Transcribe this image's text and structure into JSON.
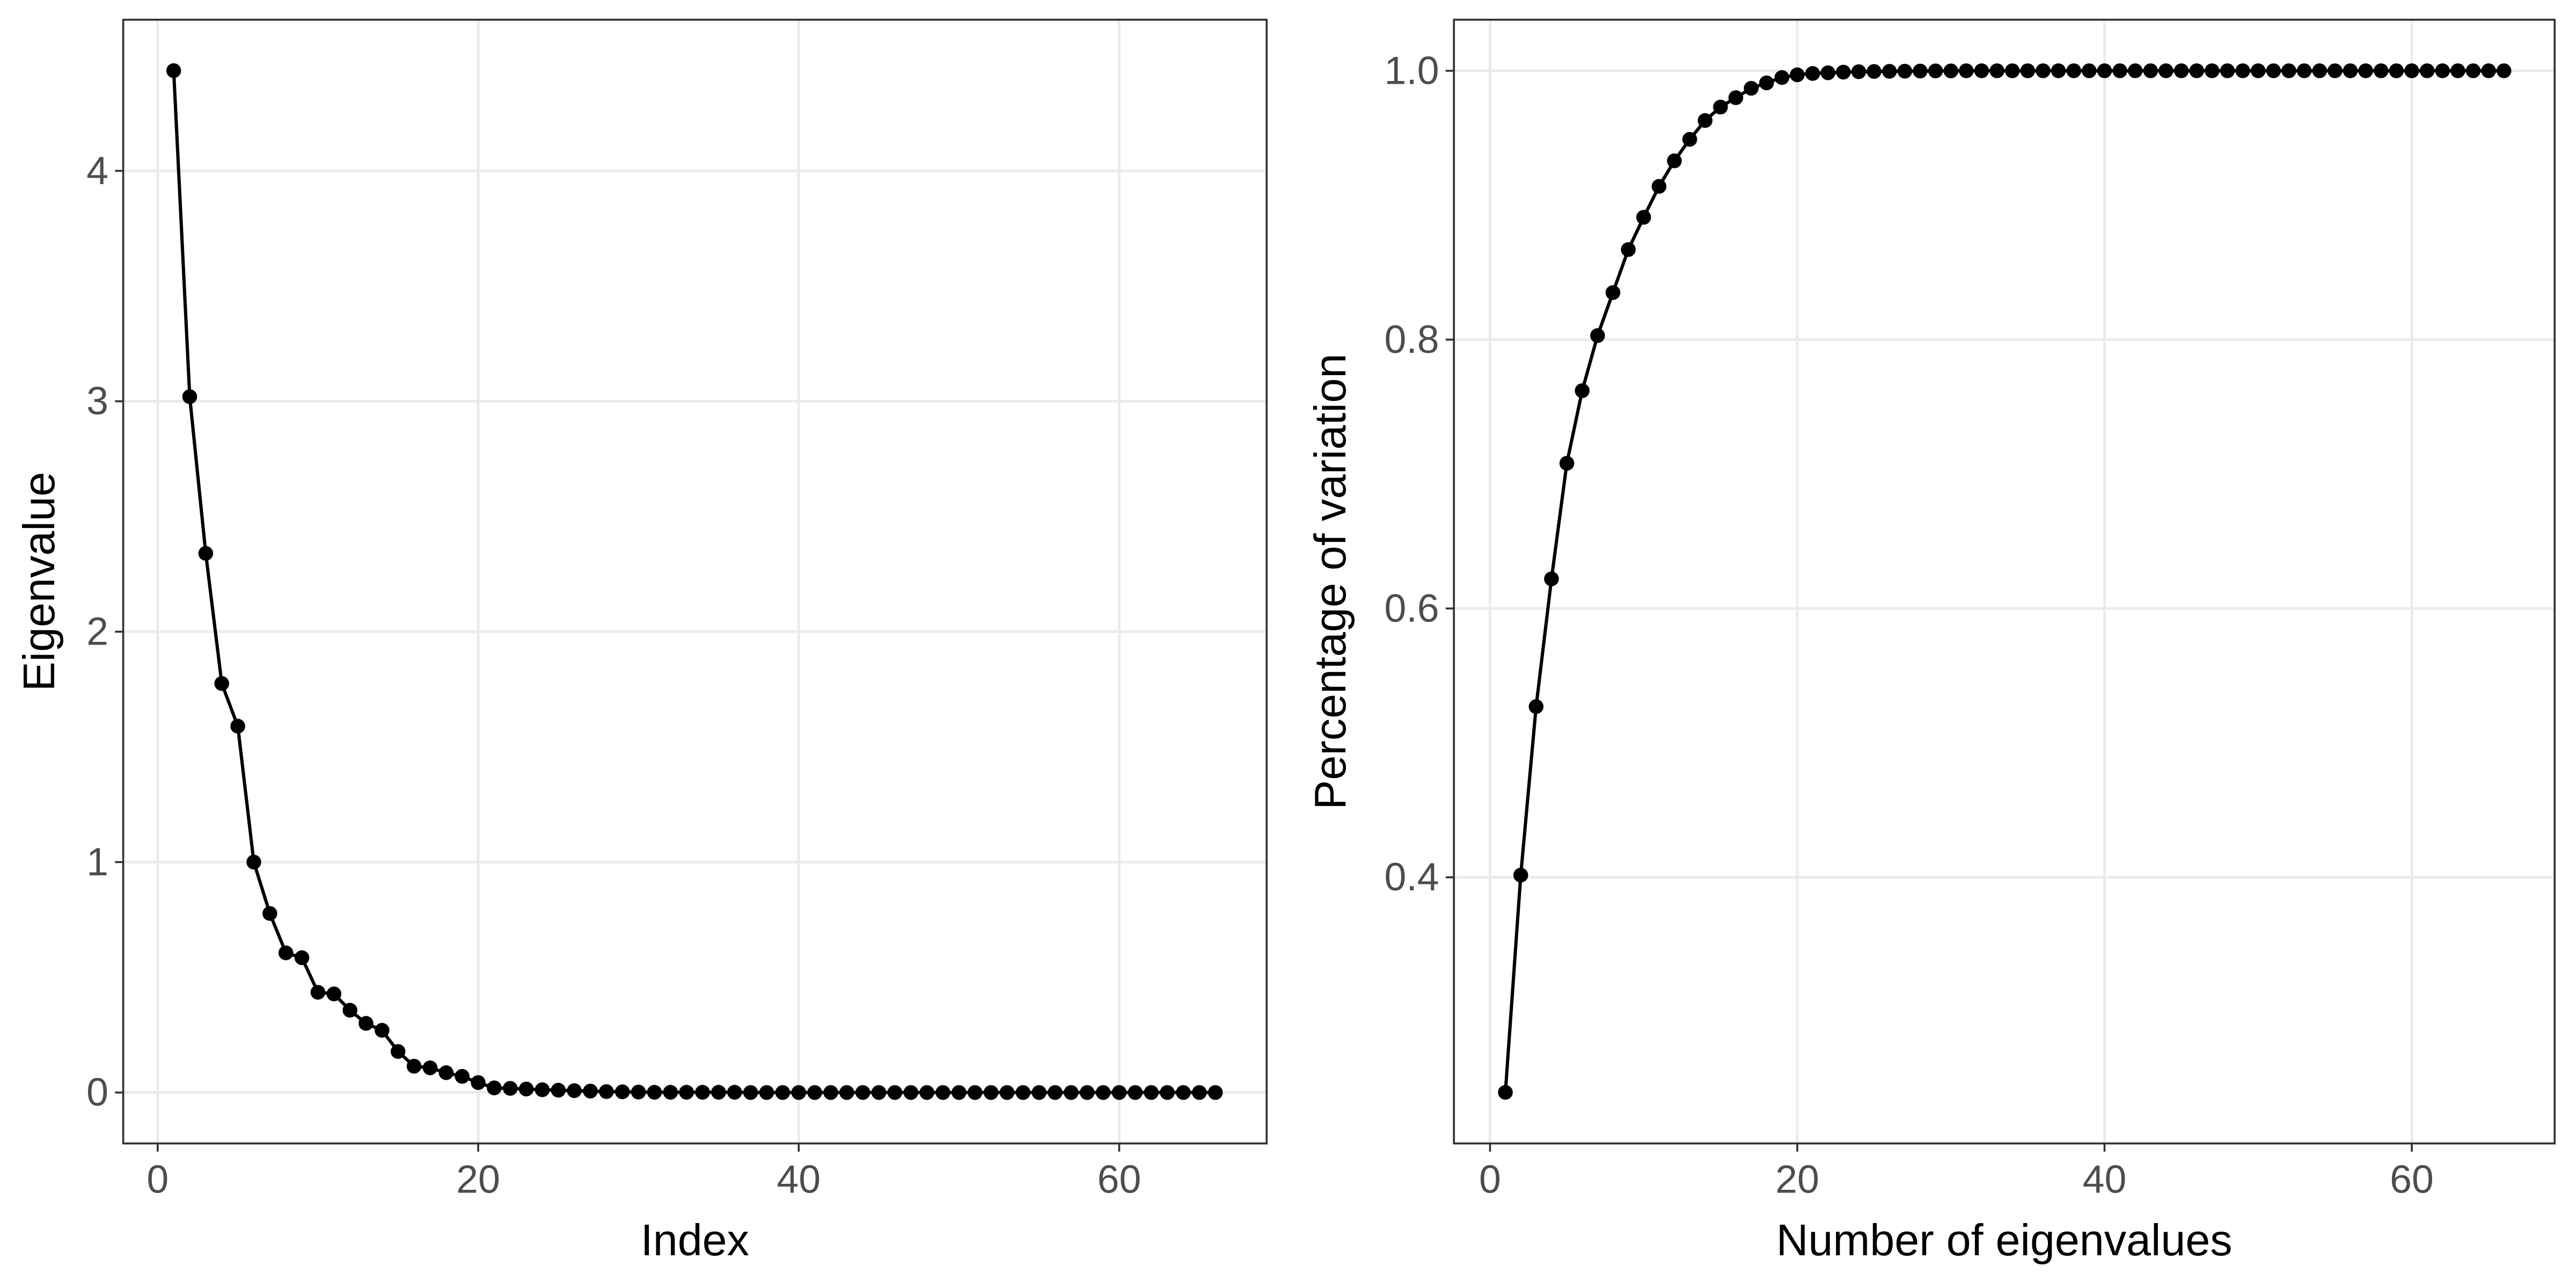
{
  "chart_data": [
    {
      "type": "line",
      "x_label": "Index",
      "y_label": "Eigenvalue",
      "color": "#000000",
      "grid": true,
      "x": [
        1,
        2,
        3,
        4,
        5,
        6,
        7,
        8,
        9,
        10,
        11,
        12,
        13,
        14,
        15,
        16,
        17,
        18,
        19,
        20,
        21,
        22,
        23,
        24,
        25,
        26,
        27,
        28,
        29,
        30,
        31,
        32,
        33,
        34,
        35,
        36,
        37,
        38,
        39,
        40,
        41,
        42,
        43,
        44,
        45,
        46,
        47,
        48,
        49,
        50,
        51,
        52,
        53,
        54,
        55,
        56,
        57,
        58,
        59,
        60,
        61,
        62,
        63,
        64,
        65,
        66
      ],
      "values": [
        4.435,
        3.02,
        2.34,
        1.775,
        1.59,
        1.0,
        0.777,
        0.606,
        0.585,
        0.435,
        0.428,
        0.357,
        0.3,
        0.27,
        0.178,
        0.114,
        0.107,
        0.086,
        0.07,
        0.043,
        0.02,
        0.018,
        0.015,
        0.012,
        0.01,
        0.008,
        0.006,
        0.004,
        0.003,
        0.002,
        0.001,
        0.001,
        0.001,
        0.001,
        0.001,
        0.001,
        0,
        0,
        0,
        0,
        0,
        0,
        0,
        0,
        0,
        0,
        0,
        0,
        0,
        0,
        0,
        0,
        0,
        0,
        0,
        0,
        0,
        0,
        0,
        0,
        0,
        0,
        0,
        0,
        0,
        0
      ],
      "xlim": [
        -2.15,
        69.2
      ],
      "xticks": [
        0,
        20,
        40,
        60
      ],
      "ylim": [
        -0.221,
        4.656
      ],
      "yticks": [
        0,
        1,
        2,
        3,
        4
      ]
    },
    {
      "type": "line",
      "x_label": "Number of eigenvalues",
      "y_label": "Percentage of variation",
      "color": "#000000",
      "grid": true,
      "x": [
        1,
        2,
        3,
        4,
        5,
        6,
        7,
        8,
        9,
        10,
        11,
        12,
        13,
        14,
        15,
        16,
        17,
        18,
        19,
        20,
        21,
        22,
        23,
        24,
        25,
        26,
        27,
        28,
        29,
        30,
        31,
        32,
        33,
        34,
        35,
        36,
        37,
        38,
        39,
        40,
        41,
        42,
        43,
        44,
        45,
        46,
        47,
        48,
        49,
        50,
        51,
        52,
        53,
        54,
        55,
        56,
        57,
        58,
        59,
        60,
        61,
        62,
        63,
        64,
        65,
        66
      ],
      "values": [
        0.24,
        0.4016,
        0.527,
        0.622,
        0.708,
        0.762,
        0.803,
        0.835,
        0.867,
        0.891,
        0.914,
        0.933,
        0.949,
        0.963,
        0.973,
        0.98,
        0.987,
        0.991,
        0.995,
        0.997,
        0.998,
        0.9985,
        0.999,
        0.9993,
        0.9995,
        0.9996,
        0.9997,
        0.9998,
        0.9999,
        0.9999,
        1,
        1,
        1,
        1,
        1,
        1,
        1,
        1,
        1,
        1,
        1,
        1,
        1,
        1,
        1,
        1,
        1,
        1,
        1,
        1,
        1,
        1,
        1,
        1,
        1,
        1,
        1,
        1,
        1,
        1,
        1,
        1,
        1,
        1,
        1,
        1
      ],
      "xlim": [
        -2.35,
        69.3
      ],
      "xticks": [
        0,
        20,
        40,
        60
      ],
      "ylim": [
        0.202,
        1.038
      ],
      "yticks": [
        0.4,
        0.6,
        0.8,
        {
          "value": 1,
          "label": "1.0"
        }
      ]
    }
  ]
}
